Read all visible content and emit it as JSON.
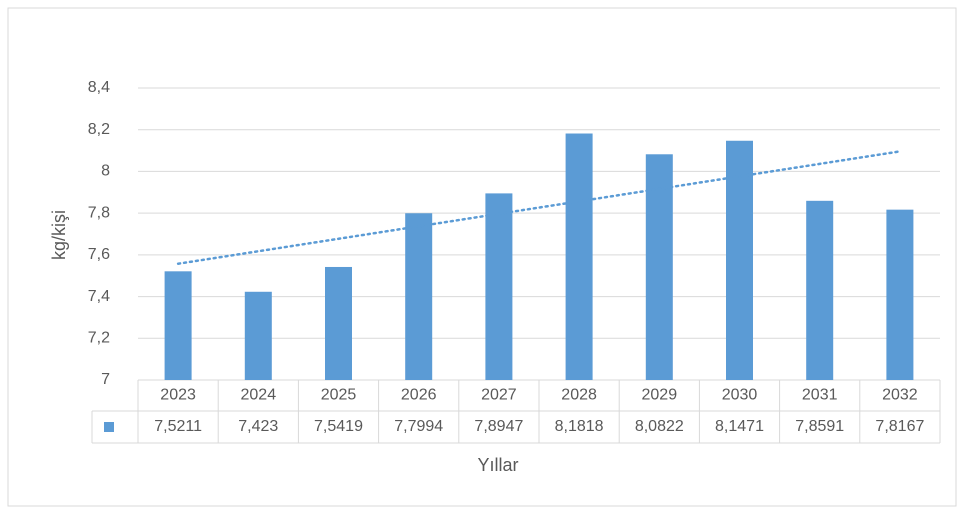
{
  "chart_data": {
    "type": "bar",
    "y_label": "kg/kişi",
    "x_label": "Yıllar",
    "categories": [
      "2023",
      "2024",
      "2025",
      "2026",
      "2027",
      "2028",
      "2029",
      "2030",
      "2031",
      "2032"
    ],
    "values": [
      7.5211,
      7.423,
      7.5419,
      7.7994,
      7.8947,
      8.1818,
      8.0822,
      8.1471,
      7.8591,
      7.8167
    ],
    "value_labels": [
      "7,5211",
      "7,423",
      "7,5419",
      "7,7994",
      "7,8947",
      "8,1818",
      "8,0822",
      "8,1471",
      "7,8591",
      "7,8167"
    ],
    "color": "#5b9bd5",
    "ylim": [
      7,
      8.4
    ],
    "yticks": [
      7,
      {
        "value": 7.2,
        "label": "7,2"
      },
      {
        "value": 7.4,
        "label": "7,4"
      },
      {
        "value": 7.6,
        "label": "7,6"
      },
      {
        "value": 7.8,
        "label": "7,8"
      },
      8,
      {
        "value": 8.2,
        "label": "8,2"
      },
      {
        "value": 8.4,
        "label": "8,4"
      }
    ],
    "grid": true,
    "trendline": "linear",
    "data_table": true
  }
}
